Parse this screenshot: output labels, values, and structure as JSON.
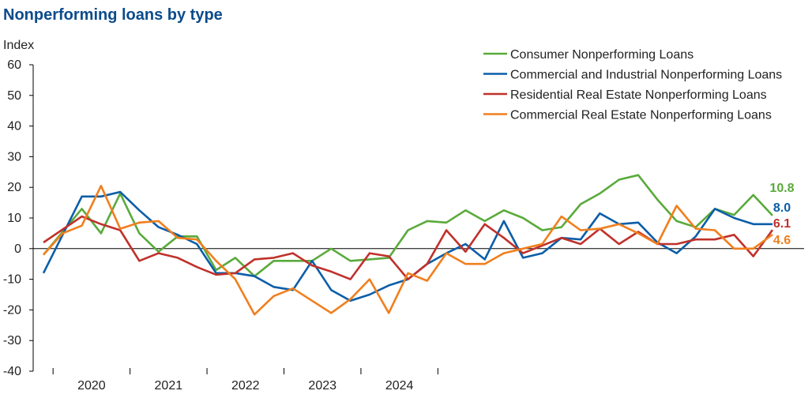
{
  "chart_data": {
    "type": "line",
    "title": "Nonperforming loans by type",
    "ylabel": "Index",
    "xlabel": "",
    "ylim": [
      -40,
      60
    ],
    "yticks": [
      60,
      50,
      40,
      30,
      20,
      10,
      0,
      -10,
      -20,
      -30,
      -40
    ],
    "xlim": [
      "2019-10",
      "2024-11"
    ],
    "x_tick_labels": [
      "2020",
      "2021",
      "2022",
      "2023",
      "2024"
    ],
    "x": [
      "2019-11",
      "2019-12",
      "2020-01",
      "2020-02",
      "2020-03",
      "2020-04",
      "2020-05",
      "2020-06",
      "2020-07",
      "2020-08",
      "2020-09",
      "2020-10",
      "2020-11",
      "2020-12",
      "2021-01",
      "2021-02",
      "2021-03",
      "2021-04",
      "2021-05",
      "2021-06",
      "2021-07",
      "2021-08",
      "2021-09",
      "2021-10",
      "2021-11",
      "2021-12",
      "2022-01",
      "2022-02",
      "2022-03",
      "2022-04",
      "2022-05",
      "2022-06",
      "2022-07",
      "2022-08",
      "2022-09",
      "2022-10",
      "2022-11",
      "2022-12",
      "2023-01",
      "2023-02",
      "2023-03",
      "2023-04",
      "2023-05",
      "2023-06",
      "2023-07",
      "2023-08",
      "2023-09",
      "2023-10",
      "2023-11",
      "2023-12",
      "2024-01",
      "2024-02",
      "2024-03",
      "2024-04",
      "2024-05",
      "2024-06",
      "2024-07",
      "2024-08",
      "2024-09",
      "2024-10"
    ],
    "series": [
      {
        "name": "Consumer Nonperforming Loans",
        "color": "#5aaa3c",
        "end_label": "10.8",
        "values": [
          -2,
          null,
          13,
          5,
          18,
          5,
          -1,
          4,
          4,
          -7,
          -3,
          -9,
          -4,
          -4,
          -4,
          0,
          -4,
          -3.5,
          -3,
          6,
          9,
          8.5,
          12.5,
          9,
          12.5,
          10,
          6,
          7,
          14.5,
          18,
          22.5,
          24,
          16,
          9,
          7,
          13,
          11,
          17.5,
          10.8,
          null,
          null,
          null,
          null,
          null,
          null,
          null,
          null,
          null,
          null,
          null,
          null,
          null,
          null,
          null,
          null,
          null,
          null,
          null,
          null,
          null
        ]
      },
      {
        "name": "Commercial and Industrial Nonperforming Loans",
        "color": "#0b5ea8",
        "end_label": "8.0",
        "values": [
          -8,
          null,
          17,
          17,
          18.5,
          12.5,
          7,
          4.5,
          1.5,
          -8,
          -8,
          -9,
          -12.5,
          -13.5,
          -4,
          -13.5,
          -17,
          -15,
          -12,
          -10,
          -5,
          -1.5,
          1.5,
          -3.5,
          9,
          -3,
          -1.5,
          3.5,
          3,
          11.5,
          8,
          8.5,
          2,
          -1.5,
          4,
          13,
          10,
          8,
          8.0,
          null,
          null,
          null,
          null,
          null,
          null,
          null,
          null,
          null,
          null,
          null,
          null,
          null,
          null,
          null,
          null,
          null,
          null,
          null,
          null,
          null
        ]
      },
      {
        "name": "Residential Real Estate Nonperforming Loans",
        "color": "#c0312b",
        "end_label": "6.1",
        "values": [
          2,
          null,
          10.5,
          8,
          6,
          -4,
          -1.5,
          -3,
          -6,
          -8.5,
          -8,
          -3.5,
          -3,
          -1.5,
          -5.5,
          -7.5,
          -10,
          -1.5,
          -2.5,
          -10,
          -5,
          6,
          -1,
          8,
          3.5,
          -1.5,
          1,
          3.5,
          1.5,
          6.5,
          1.5,
          5.5,
          1.5,
          1.5,
          3,
          3,
          4.5,
          -2.5,
          6.1,
          null,
          null,
          null,
          null,
          null,
          null,
          null,
          null,
          null,
          null,
          null,
          null,
          null,
          null,
          null,
          null,
          null,
          null,
          null,
          null,
          null
        ]
      },
      {
        "name": "Commercial Real Estate Nonperforming Loans",
        "color": "#f07f1e",
        "end_label": "4.6",
        "values": [
          -2,
          5,
          7.5,
          20.5,
          6.5,
          8.5,
          9,
          3.5,
          3,
          -4,
          -10,
          -21.5,
          -15.5,
          -13,
          -17,
          -21,
          -16.5,
          -10,
          -21,
          -8,
          -10.5,
          -1.5,
          -5,
          -5,
          -1.5,
          0,
          1.5,
          10.5,
          6,
          6.5,
          8,
          5,
          1.5,
          14,
          6.5,
          6,
          0,
          0,
          4.6,
          null,
          null,
          null,
          null,
          null,
          null,
          null,
          null,
          null,
          null,
          null,
          null,
          null,
          null,
          null,
          null,
          null,
          null,
          null,
          null,
          null
        ]
      }
    ],
    "grid": false,
    "legend_position": "top-right"
  }
}
